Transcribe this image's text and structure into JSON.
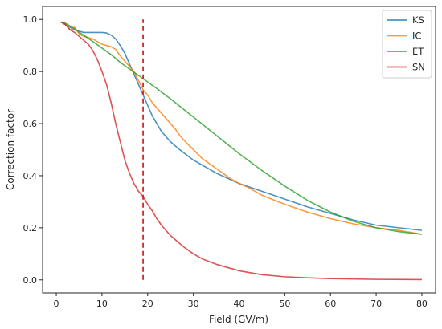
{
  "chart_data": {
    "type": "line",
    "title": "",
    "xlabel": "Field (GV/m)",
    "ylabel": "Correction factor",
    "xlim": [
      -3,
      83
    ],
    "ylim": [
      -0.05,
      1.05
    ],
    "xticks": [
      0,
      10,
      20,
      30,
      40,
      50,
      60,
      70,
      80
    ],
    "yticks": [
      0.0,
      0.2,
      0.4,
      0.6,
      0.8,
      1.0
    ],
    "xtick_labels": [
      "0",
      "10",
      "20",
      "30",
      "40",
      "50",
      "60",
      "70",
      "80"
    ],
    "ytick_labels": [
      "0.0",
      "0.2",
      "0.4",
      "0.6",
      "0.8",
      "1.0"
    ],
    "grid": false,
    "legend_position": "top-right",
    "vline": {
      "x": 19,
      "ymin": 0.0,
      "ymax": 1.0,
      "color": "#d62728",
      "style": "dashed"
    },
    "series": [
      {
        "name": "KS",
        "color": "#1f77b4",
        "x": [
          1,
          2,
          3,
          4,
          5,
          6,
          7,
          8,
          9,
          10,
          11,
          12,
          13,
          14,
          15,
          16,
          17,
          18,
          19,
          20,
          21,
          22,
          23,
          25,
          27,
          30,
          35,
          40,
          45,
          50,
          55,
          60,
          65,
          70,
          75,
          80
        ],
        "y": [
          0.99,
          0.98,
          0.97,
          0.96,
          0.955,
          0.95,
          0.95,
          0.95,
          0.95,
          0.95,
          0.948,
          0.94,
          0.925,
          0.9,
          0.87,
          0.83,
          0.79,
          0.75,
          0.71,
          0.67,
          0.63,
          0.6,
          0.57,
          0.53,
          0.5,
          0.46,
          0.41,
          0.37,
          0.34,
          0.31,
          0.28,
          0.255,
          0.23,
          0.21,
          0.2,
          0.19
        ]
      },
      {
        "name": "IC",
        "color": "#ff7f0e",
        "x": [
          1,
          2,
          3,
          4,
          5,
          6,
          7,
          8,
          9,
          10,
          11,
          12,
          13,
          14,
          15,
          16,
          17,
          18,
          19,
          20,
          21,
          22,
          23,
          24,
          25,
          26,
          27,
          28,
          30,
          32,
          34,
          36,
          38,
          40,
          42,
          45,
          50,
          55,
          60,
          65,
          70,
          75,
          80
        ],
        "y": [
          0.99,
          0.985,
          0.96,
          0.97,
          0.945,
          0.935,
          0.93,
          0.925,
          0.915,
          0.905,
          0.9,
          0.895,
          0.885,
          0.86,
          0.84,
          0.82,
          0.8,
          0.765,
          0.73,
          0.71,
          0.68,
          0.66,
          0.64,
          0.62,
          0.6,
          0.58,
          0.555,
          0.535,
          0.5,
          0.465,
          0.44,
          0.415,
          0.39,
          0.37,
          0.355,
          0.325,
          0.29,
          0.26,
          0.235,
          0.215,
          0.2,
          0.19,
          0.175
        ]
      },
      {
        "name": "ET",
        "color": "#2ca02c",
        "x": [
          1,
          2,
          3,
          4,
          5,
          6,
          8,
          10,
          12,
          14,
          16,
          18,
          20,
          22,
          25,
          30,
          35,
          40,
          45,
          50,
          55,
          60,
          65,
          70,
          75,
          80
        ],
        "y": [
          0.99,
          0.985,
          0.975,
          0.965,
          0.95,
          0.94,
          0.915,
          0.89,
          0.865,
          0.835,
          0.81,
          0.785,
          0.76,
          0.735,
          0.695,
          0.625,
          0.555,
          0.485,
          0.42,
          0.36,
          0.305,
          0.26,
          0.225,
          0.2,
          0.185,
          0.175
        ]
      },
      {
        "name": "SN",
        "color": "#d62728",
        "x": [
          1,
          2,
          3,
          4,
          5,
          6,
          7,
          8,
          9,
          10,
          11,
          12,
          13,
          14,
          15,
          16,
          17,
          18,
          19,
          20,
          21,
          22,
          23,
          24,
          25,
          26,
          28,
          30,
          32,
          35,
          38,
          40,
          45,
          50,
          55,
          60,
          70,
          80
        ],
        "y": [
          0.99,
          0.98,
          0.96,
          0.95,
          0.935,
          0.92,
          0.905,
          0.88,
          0.845,
          0.8,
          0.75,
          0.68,
          0.6,
          0.53,
          0.46,
          0.41,
          0.37,
          0.34,
          0.32,
          0.29,
          0.265,
          0.235,
          0.21,
          0.19,
          0.17,
          0.155,
          0.125,
          0.1,
          0.08,
          0.06,
          0.045,
          0.035,
          0.02,
          0.012,
          0.008,
          0.005,
          0.002,
          0.001
        ]
      }
    ]
  }
}
